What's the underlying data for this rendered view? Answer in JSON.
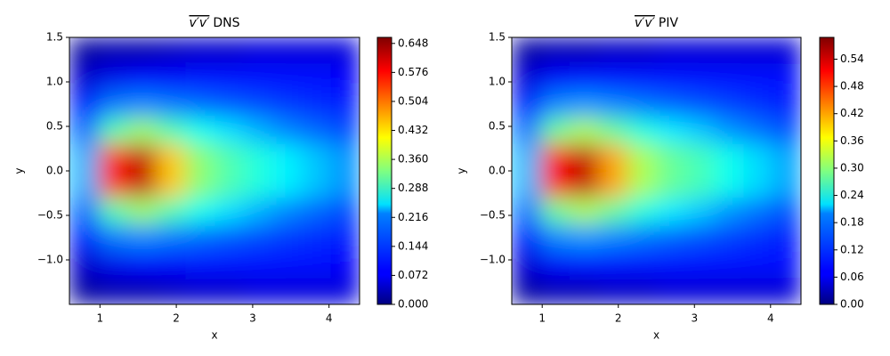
{
  "chart_data": [
    {
      "type": "contour",
      "title_overline": "v′v′",
      "title": "DNS",
      "xlabel": "x",
      "ylabel": "y",
      "xlim": [
        0.6,
        4.4
      ],
      "ylim": [
        -1.5,
        1.5
      ],
      "xticks": [
        1,
        2,
        3,
        4
      ],
      "yticks": [
        {
          "value": -1.0,
          "label": "−1.0"
        },
        {
          "value": -0.5,
          "label": "−0.5"
        },
        {
          "value": 0.0,
          "label": "0.0"
        },
        {
          "value": 0.5,
          "label": "0.5"
        },
        {
          "value": 1.0,
          "label": "1.0"
        },
        {
          "value": 1.5,
          "label": "1.5"
        }
      ],
      "clim": [
        0,
        0.663
      ],
      "cticks": [
        {
          "value": 0,
          "label": "0.000"
        },
        0.072,
        0.144,
        0.216,
        0.288,
        {
          "value": 0.36,
          "label": "0.360"
        },
        0.432,
        0.504,
        0.576,
        0.648
      ],
      "colormap": "jet",
      "x": [
        0.79,
        1.17,
        1.55,
        1.93,
        2.31,
        2.69,
        3.07,
        3.45,
        3.83,
        4.21
      ],
      "y": [
        1.35,
        1.05,
        0.75,
        0.45,
        0.15,
        -0.15,
        -0.45,
        -0.75,
        -1.05,
        -1.35
      ],
      "z": [
        [
          0.02,
          0.03,
          0.03,
          0.04,
          0.05,
          0.05,
          0.06,
          0.06,
          0.06,
          0.06
        ],
        [
          0.05,
          0.07,
          0.08,
          0.08,
          0.09,
          0.09,
          0.09,
          0.09,
          0.09,
          0.08
        ],
        [
          0.1,
          0.16,
          0.17,
          0.16,
          0.15,
          0.14,
          0.13,
          0.12,
          0.11,
          0.1
        ],
        [
          0.15,
          0.3,
          0.35,
          0.3,
          0.26,
          0.23,
          0.2,
          0.17,
          0.15,
          0.13
        ],
        [
          0.2,
          0.55,
          0.62,
          0.45,
          0.34,
          0.3,
          0.27,
          0.24,
          0.21,
          0.18
        ],
        [
          0.2,
          0.55,
          0.62,
          0.45,
          0.34,
          0.3,
          0.27,
          0.24,
          0.21,
          0.18
        ],
        [
          0.15,
          0.3,
          0.35,
          0.3,
          0.26,
          0.23,
          0.2,
          0.17,
          0.15,
          0.13
        ],
        [
          0.1,
          0.16,
          0.17,
          0.16,
          0.15,
          0.14,
          0.13,
          0.12,
          0.11,
          0.1
        ],
        [
          0.05,
          0.07,
          0.08,
          0.08,
          0.09,
          0.09,
          0.09,
          0.09,
          0.09,
          0.08
        ],
        [
          0.02,
          0.03,
          0.03,
          0.04,
          0.05,
          0.05,
          0.06,
          0.06,
          0.06,
          0.06
        ]
      ]
    },
    {
      "type": "contour",
      "title_overline": "v′v′",
      "title": "PIV",
      "xlabel": "x",
      "ylabel": "y",
      "xlim": [
        0.6,
        4.4
      ],
      "ylim": [
        -1.5,
        1.5
      ],
      "xticks": [
        1,
        2,
        3,
        4
      ],
      "yticks": [
        {
          "value": -1.0,
          "label": "−1.0"
        },
        {
          "value": -0.5,
          "label": "−0.5"
        },
        {
          "value": 0.0,
          "label": "0.0"
        },
        {
          "value": 0.5,
          "label": "0.5"
        },
        {
          "value": 1.0,
          "label": "1.0"
        },
        {
          "value": 1.5,
          "label": "1.5"
        }
      ],
      "clim": [
        0,
        0.588
      ],
      "cticks": [
        {
          "value": 0,
          "label": "0.00"
        },
        0.06,
        0.12,
        0.18,
        0.24,
        {
          "value": 0.3,
          "label": "0.30"
        },
        0.36,
        0.42,
        0.48,
        0.54
      ],
      "colormap": "jet",
      "x": [
        0.79,
        1.17,
        1.55,
        1.93,
        2.31,
        2.69,
        3.07,
        3.45,
        3.83,
        4.21
      ],
      "y": [
        1.35,
        1.05,
        0.75,
        0.45,
        0.15,
        -0.15,
        -0.45,
        -0.75,
        -1.05,
        -1.35
      ],
      "z": [
        [
          0.02,
          0.03,
          0.03,
          0.04,
          0.04,
          0.05,
          0.05,
          0.05,
          0.05,
          0.05
        ],
        [
          0.05,
          0.07,
          0.08,
          0.08,
          0.08,
          0.08,
          0.08,
          0.08,
          0.08,
          0.08
        ],
        [
          0.09,
          0.15,
          0.16,
          0.15,
          0.14,
          0.13,
          0.12,
          0.11,
          0.1,
          0.09
        ],
        [
          0.14,
          0.28,
          0.32,
          0.28,
          0.24,
          0.21,
          0.19,
          0.16,
          0.14,
          0.12
        ],
        [
          0.18,
          0.5,
          0.55,
          0.42,
          0.32,
          0.28,
          0.26,
          0.23,
          0.2,
          0.17
        ],
        [
          0.18,
          0.5,
          0.55,
          0.42,
          0.32,
          0.28,
          0.26,
          0.23,
          0.2,
          0.17
        ],
        [
          0.14,
          0.28,
          0.32,
          0.28,
          0.24,
          0.21,
          0.19,
          0.16,
          0.14,
          0.12
        ],
        [
          0.09,
          0.15,
          0.16,
          0.15,
          0.14,
          0.13,
          0.12,
          0.11,
          0.1,
          0.09
        ],
        [
          0.05,
          0.07,
          0.08,
          0.08,
          0.08,
          0.08,
          0.08,
          0.08,
          0.08,
          0.08
        ],
        [
          0.02,
          0.03,
          0.03,
          0.04,
          0.04,
          0.05,
          0.05,
          0.05,
          0.05,
          0.05
        ]
      ]
    }
  ]
}
